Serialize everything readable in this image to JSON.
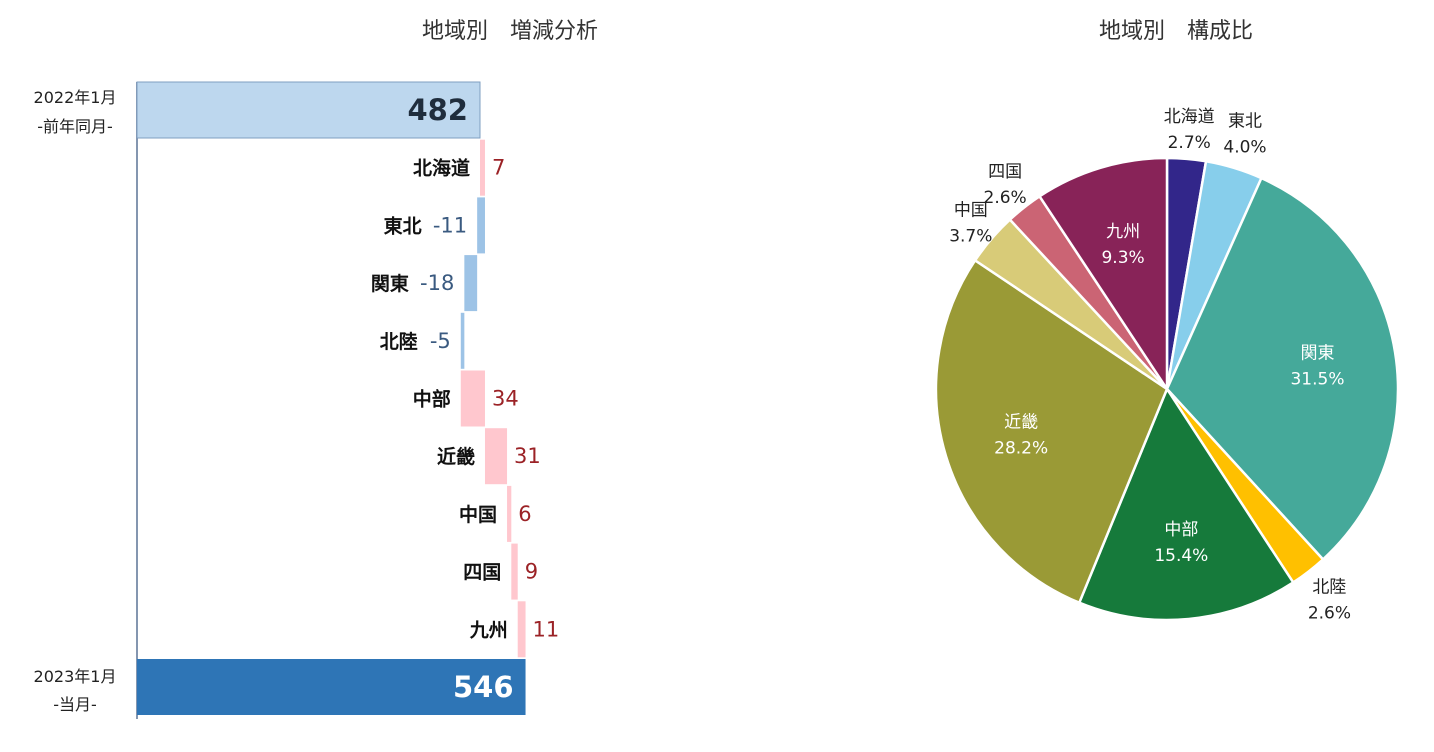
{
  "waterfall": {
    "title": "地域別　増減分析",
    "start_label_line1": "2022年1月",
    "start_label_line2": "-前年同月-",
    "end_label_line1": "2023年1月",
    "end_label_line2": "-当月-",
    "colors": {
      "start": "#bdd7ee",
      "end": "#2e75b6",
      "increase": "#ffc7ce",
      "decrease": "#9dc3e6"
    }
  },
  "pie": {
    "title": "地域別　構成比"
  },
  "chart_data": [
    {
      "type": "bar",
      "subtype": "waterfall",
      "title": "地域別　増減分析",
      "start": {
        "label": "2022年1月 -前年同月-",
        "value": 482
      },
      "end": {
        "label": "2023年1月 -当月-",
        "value": 546
      },
      "categories": [
        "北海道",
        "東北",
        "関東",
        "北陸",
        "中部",
        "近畿",
        "中国",
        "四国",
        "九州"
      ],
      "values": [
        7,
        -11,
        -18,
        -5,
        34,
        31,
        6,
        9,
        11
      ]
    },
    {
      "type": "pie",
      "title": "地域別　構成比",
      "categories": [
        "北海道",
        "東北",
        "関東",
        "北陸",
        "中部",
        "近畿",
        "中国",
        "四国",
        "九州"
      ],
      "values": [
        2.7,
        4.0,
        31.5,
        2.6,
        15.4,
        28.2,
        3.7,
        2.6,
        9.3
      ],
      "value_labels": [
        "2.7%",
        "4.0%",
        "31.5%",
        "2.6%",
        "15.4%",
        "28.2%",
        "3.7%",
        "2.6%",
        "9.3%"
      ],
      "colors": [
        "#32268a",
        "#87ceeb",
        "#45a99a",
        "#ffc000",
        "#167a3b",
        "#9a9a36",
        "#d8cb78",
        "#cb6474",
        "#882358"
      ]
    }
  ]
}
